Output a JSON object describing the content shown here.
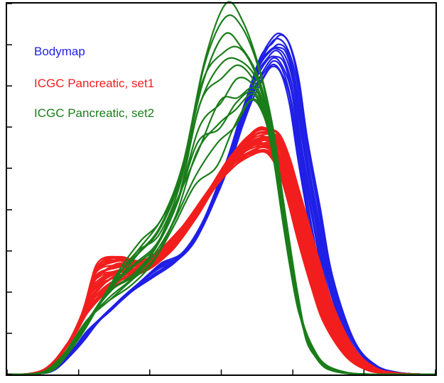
{
  "chart_data": {
    "type": "line",
    "title": "",
    "xlabel": "",
    "ylabel": "",
    "xlim": [
      0,
      100
    ],
    "ylim": [
      0,
      1
    ],
    "xticks": [
      0,
      16.7,
      33.3,
      50,
      66.7,
      83.3,
      100
    ],
    "yticks": [
      0,
      0.111,
      0.222,
      0.333,
      0.444,
      0.556,
      0.667,
      0.778,
      0.889,
      1
    ],
    "tick_labels_shown": false,
    "grid": false,
    "legend": {
      "placement": "top-left",
      "style": "colored-text",
      "entries": [
        {
          "label": "Bodymap",
          "color": "#1f1fe6"
        },
        {
          "label": "ICGC Pancreatic, set1",
          "color": "#f21e1e"
        },
        {
          "label": "ICGC Pancreatic, set2",
          "color": "#1a7d1a"
        }
      ]
    },
    "series": [
      {
        "group": "Bodymap",
        "color": "#1f1fe6",
        "curve_count": 12,
        "x": [
          0,
          6,
          10,
          14,
          17,
          20,
          25,
          30,
          35,
          40,
          45,
          50,
          54,
          58,
          61,
          63,
          65,
          67,
          69,
          72,
          75,
          80,
          85,
          90,
          95,
          100
        ],
        "y_min": [
          0,
          0.001,
          0.008,
          0.04,
          0.075,
          0.12,
          0.17,
          0.22,
          0.26,
          0.3,
          0.36,
          0.48,
          0.6,
          0.73,
          0.8,
          0.83,
          0.81,
          0.73,
          0.58,
          0.38,
          0.21,
          0.07,
          0.018,
          0.004,
          0.001,
          0
        ],
        "y_max": [
          0,
          0.002,
          0.012,
          0.055,
          0.095,
          0.14,
          0.2,
          0.25,
          0.3,
          0.33,
          0.42,
          0.57,
          0.72,
          0.86,
          0.91,
          0.92,
          0.89,
          0.8,
          0.64,
          0.45,
          0.26,
          0.09,
          0.025,
          0.006,
          0.001,
          0
        ]
      },
      {
        "group": "ICGC Pancreatic, set1",
        "color": "#f21e1e",
        "curve_count": 35,
        "x": [
          0,
          6,
          10,
          14,
          17,
          20,
          25,
          30,
          35,
          40,
          45,
          50,
          54,
          58,
          61,
          63,
          65,
          67,
          69,
          72,
          75,
          80,
          85,
          90,
          95,
          100
        ],
        "y_min": [
          0,
          0.002,
          0.015,
          0.06,
          0.11,
          0.17,
          0.23,
          0.26,
          0.29,
          0.34,
          0.42,
          0.51,
          0.56,
          0.59,
          0.6,
          0.58,
          0.53,
          0.45,
          0.36,
          0.24,
          0.14,
          0.05,
          0.012,
          0.003,
          0.001,
          0
        ],
        "y_max": [
          0,
          0.003,
          0.03,
          0.1,
          0.18,
          0.3,
          0.32,
          0.31,
          0.34,
          0.4,
          0.48,
          0.57,
          0.63,
          0.67,
          0.66,
          0.64,
          0.58,
          0.5,
          0.42,
          0.3,
          0.19,
          0.07,
          0.018,
          0.004,
          0.001,
          0
        ]
      },
      {
        "group": "ICGC Pancreatic, set2",
        "color": "#1a7d1a",
        "curve_count": 12,
        "x": [
          0,
          6,
          10,
          14,
          17,
          20,
          25,
          30,
          35,
          40,
          45,
          50,
          54,
          58,
          61,
          63,
          65,
          67,
          69,
          72,
          75,
          80,
          85,
          90,
          95,
          100
        ],
        "y_min": [
          0,
          0.001,
          0.01,
          0.05,
          0.1,
          0.15,
          0.2,
          0.24,
          0.3,
          0.4,
          0.5,
          0.56,
          0.66,
          0.74,
          0.7,
          0.6,
          0.45,
          0.3,
          0.18,
          0.08,
          0.03,
          0.006,
          0.001,
          0,
          0,
          0
        ],
        "y_max": [
          0,
          0.002,
          0.015,
          0.07,
          0.12,
          0.18,
          0.28,
          0.36,
          0.42,
          0.57,
          0.87,
          1,
          0.95,
          0.82,
          0.66,
          0.5,
          0.34,
          0.2,
          0.09,
          0.03,
          0.008,
          0.001,
          0,
          0,
          0,
          0
        ]
      }
    ]
  }
}
